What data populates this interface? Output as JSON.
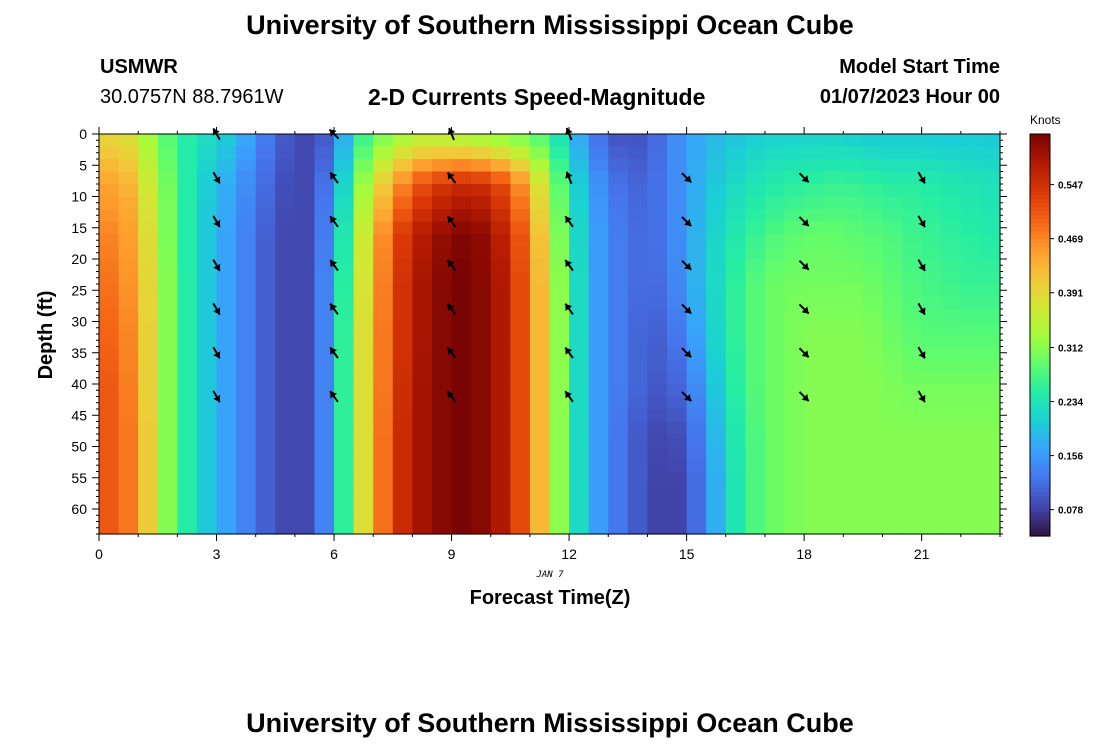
{
  "header": {
    "title": "University of Southern Mississippi Ocean Cube",
    "station_id": "USMWR",
    "station_coords": "30.0757N  88.7961W",
    "subtitle": "2-D Currents Speed-Magnitude",
    "model_start_label": "Model Start Time",
    "model_start_value": "01/07/2023 Hour 00"
  },
  "footer": {
    "title": "University of Southern Mississippi Ocean Cube"
  },
  "chart_data": {
    "type": "heatmap",
    "xlabel": "Forecast Time(Z)",
    "ylabel": "Depth (ft)",
    "date_label": "JAN 7",
    "x_ticks": [
      0,
      3,
      6,
      9,
      12,
      15,
      18,
      21
    ],
    "y_ticks": [
      0,
      5,
      10,
      15,
      20,
      25,
      30,
      35,
      40,
      45,
      50,
      55,
      60
    ],
    "xlim": [
      0,
      23
    ],
    "ylim": [
      0,
      64
    ],
    "y_inverted": true,
    "grid": false,
    "colorbar": {
      "label": "Knots",
      "ticks": [
        0.078,
        0.156,
        0.234,
        0.312,
        0.391,
        0.469,
        0.547
      ],
      "tick_labels": [
        "0.078",
        "0.156",
        "0.234",
        "0.312",
        "0.391",
        "0.469",
        "0.547"
      ],
      "range": [
        0.04,
        0.62
      ],
      "colors": [
        "#30123b",
        "#4145ab",
        "#4675ed",
        "#39a2fc",
        "#1bcfd4",
        "#24eca6",
        "#61fc6c",
        "#a4fc3b",
        "#d1e834",
        "#f3c63a",
        "#fe9b2d",
        "#f36315",
        "#d93806",
        "#b11901",
        "#7a0403"
      ]
    },
    "speed_knots": {
      "hours": [
        0,
        0.5,
        1,
        1.5,
        2,
        2.5,
        3,
        3.5,
        4,
        4.5,
        5,
        5.5,
        6,
        6.5,
        7,
        7.5,
        8,
        8.5,
        9,
        9.5,
        10,
        10.5,
        11,
        11.5,
        12,
        12.5,
        13,
        13.5,
        14,
        14.5,
        15,
        15.5,
        16,
        16.5,
        17,
        17.5,
        18,
        18.5,
        19,
        19.5,
        20,
        20.5,
        21,
        21.5,
        22,
        22.5,
        23
      ],
      "depths_ft": [
        0,
        8,
        16,
        24,
        32,
        40,
        48,
        56,
        64
      ],
      "values": [
        [
          0.38,
          0.4,
          0.36,
          0.3,
          0.26,
          0.23,
          0.22,
          0.19,
          0.15,
          0.11,
          0.09,
          0.08,
          0.12,
          0.23,
          0.29,
          0.31,
          0.34,
          0.34,
          0.33,
          0.32,
          0.31,
          0.3,
          0.29,
          0.26,
          0.2,
          0.14,
          0.1,
          0.09,
          0.1,
          0.13,
          0.16,
          0.18,
          0.19,
          0.2,
          0.21,
          0.21,
          0.21,
          0.21,
          0.21,
          0.2,
          0.2,
          0.2,
          0.2,
          0.2,
          0.2,
          0.2,
          0.2
        ],
        [
          0.44,
          0.45,
          0.41,
          0.33,
          0.27,
          0.22,
          0.19,
          0.16,
          0.13,
          0.1,
          0.08,
          0.09,
          0.15,
          0.28,
          0.37,
          0.44,
          0.5,
          0.53,
          0.55,
          0.56,
          0.54,
          0.5,
          0.43,
          0.33,
          0.24,
          0.17,
          0.13,
          0.11,
          0.11,
          0.13,
          0.16,
          0.19,
          0.21,
          0.23,
          0.24,
          0.25,
          0.25,
          0.26,
          0.26,
          0.26,
          0.25,
          0.25,
          0.25,
          0.24,
          0.24,
          0.23,
          0.23
        ],
        [
          0.47,
          0.47,
          0.43,
          0.34,
          0.27,
          0.22,
          0.18,
          0.15,
          0.12,
          0.09,
          0.08,
          0.09,
          0.17,
          0.31,
          0.42,
          0.51,
          0.56,
          0.59,
          0.61,
          0.62,
          0.59,
          0.55,
          0.47,
          0.36,
          0.25,
          0.18,
          0.14,
          0.12,
          0.11,
          0.13,
          0.16,
          0.2,
          0.23,
          0.25,
          0.27,
          0.28,
          0.29,
          0.29,
          0.29,
          0.28,
          0.28,
          0.27,
          0.26,
          0.26,
          0.25,
          0.25,
          0.24
        ],
        [
          0.49,
          0.48,
          0.44,
          0.35,
          0.27,
          0.22,
          0.18,
          0.15,
          0.12,
          0.09,
          0.08,
          0.09,
          0.18,
          0.32,
          0.43,
          0.52,
          0.57,
          0.6,
          0.62,
          0.62,
          0.6,
          0.56,
          0.48,
          0.37,
          0.26,
          0.18,
          0.14,
          0.12,
          0.11,
          0.12,
          0.16,
          0.2,
          0.24,
          0.27,
          0.29,
          0.3,
          0.3,
          0.3,
          0.3,
          0.3,
          0.29,
          0.28,
          0.27,
          0.27,
          0.26,
          0.26,
          0.26
        ],
        [
          0.5,
          0.49,
          0.45,
          0.35,
          0.27,
          0.22,
          0.18,
          0.15,
          0.12,
          0.09,
          0.08,
          0.09,
          0.18,
          0.33,
          0.44,
          0.52,
          0.57,
          0.6,
          0.62,
          0.62,
          0.6,
          0.56,
          0.48,
          0.37,
          0.26,
          0.18,
          0.14,
          0.12,
          0.1,
          0.11,
          0.14,
          0.19,
          0.24,
          0.27,
          0.29,
          0.3,
          0.31,
          0.31,
          0.31,
          0.31,
          0.3,
          0.29,
          0.28,
          0.28,
          0.28,
          0.28,
          0.28
        ],
        [
          0.51,
          0.5,
          0.45,
          0.35,
          0.27,
          0.22,
          0.18,
          0.15,
          0.12,
          0.09,
          0.08,
          0.09,
          0.18,
          0.33,
          0.44,
          0.52,
          0.58,
          0.6,
          0.62,
          0.62,
          0.6,
          0.56,
          0.48,
          0.37,
          0.26,
          0.18,
          0.14,
          0.12,
          0.1,
          0.1,
          0.12,
          0.17,
          0.23,
          0.27,
          0.29,
          0.3,
          0.31,
          0.31,
          0.31,
          0.31,
          0.31,
          0.3,
          0.3,
          0.3,
          0.3,
          0.3,
          0.3
        ],
        [
          0.51,
          0.5,
          0.46,
          0.35,
          0.27,
          0.22,
          0.18,
          0.15,
          0.12,
          0.09,
          0.08,
          0.09,
          0.18,
          0.33,
          0.44,
          0.53,
          0.58,
          0.6,
          0.62,
          0.62,
          0.6,
          0.56,
          0.48,
          0.37,
          0.26,
          0.18,
          0.14,
          0.11,
          0.09,
          0.08,
          0.1,
          0.15,
          0.22,
          0.26,
          0.29,
          0.3,
          0.31,
          0.31,
          0.31,
          0.31,
          0.31,
          0.31,
          0.31,
          0.31,
          0.31,
          0.31,
          0.31
        ],
        [
          0.51,
          0.5,
          0.46,
          0.35,
          0.27,
          0.22,
          0.18,
          0.15,
          0.12,
          0.09,
          0.08,
          0.09,
          0.18,
          0.33,
          0.44,
          0.53,
          0.58,
          0.6,
          0.62,
          0.62,
          0.6,
          0.56,
          0.48,
          0.37,
          0.26,
          0.18,
          0.14,
          0.11,
          0.09,
          0.07,
          0.09,
          0.14,
          0.21,
          0.26,
          0.29,
          0.3,
          0.31,
          0.31,
          0.31,
          0.31,
          0.31,
          0.31,
          0.31,
          0.31,
          0.31,
          0.31,
          0.31
        ],
        [
          0.51,
          0.5,
          0.46,
          0.35,
          0.27,
          0.22,
          0.18,
          0.15,
          0.12,
          0.09,
          0.08,
          0.09,
          0.18,
          0.33,
          0.44,
          0.53,
          0.58,
          0.6,
          0.62,
          0.62,
          0.6,
          0.56,
          0.48,
          0.37,
          0.26,
          0.18,
          0.14,
          0.11,
          0.09,
          0.07,
          0.09,
          0.14,
          0.21,
          0.26,
          0.29,
          0.3,
          0.31,
          0.31,
          0.31,
          0.31,
          0.31,
          0.31,
          0.31,
          0.31,
          0.31,
          0.31,
          0.31
        ]
      ]
    },
    "direction_arrows": {
      "hours": [
        3,
        6,
        9,
        12,
        15,
        18,
        21
      ],
      "depths_ft": [
        0,
        7,
        14,
        21,
        28,
        35,
        42
      ],
      "direction_deg": [
        [
          120,
          135,
          112,
          112,
          null,
          null,
          null
        ],
        [
          300,
          126,
          126,
          112,
          315,
          315,
          300
        ],
        [
          300,
          126,
          126,
          126,
          315,
          315,
          300
        ],
        [
          300,
          126,
          126,
          126,
          315,
          315,
          300
        ],
        [
          300,
          126,
          126,
          126,
          315,
          315,
          300
        ],
        [
          300,
          126,
          126,
          126,
          315,
          315,
          300
        ],
        [
          300,
          126,
          126,
          126,
          315,
          315,
          300
        ]
      ]
    }
  }
}
